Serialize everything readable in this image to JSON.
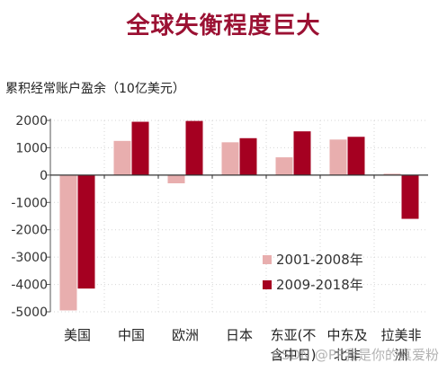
{
  "chart_data": {
    "type": "bar",
    "title": "全球失衡程度巨大",
    "ylabel": "累积经常账户盈余（10亿美元）",
    "xlabel": "",
    "categories": [
      "美国",
      "中国",
      "欧洲",
      "日本",
      "东亚(不含中日)",
      "中东及北非",
      "拉美非洲"
    ],
    "category_display": [
      [
        "美国"
      ],
      [
        "中国"
      ],
      [
        "欧洲"
      ],
      [
        "日本"
      ],
      [
        "东亚(不",
        "含中日)"
      ],
      [
        "中东及",
        "北非"
      ],
      [
        "拉美非",
        "洲"
      ]
    ],
    "series": [
      {
        "name": "2001-2008年",
        "color": "#e8aeae",
        "values": [
          -4950,
          1250,
          -300,
          1200,
          650,
          1300,
          50
        ]
      },
      {
        "name": "2009-2018年",
        "color": "#a50021",
        "values": [
          -4150,
          1950,
          1980,
          1350,
          1600,
          1400,
          -1600
        ]
      }
    ],
    "ylim": [
      -5000,
      2000
    ],
    "yticks": [
      2000,
      1000,
      0,
      -1000,
      -2000,
      -3000,
      -4000,
      -5000
    ],
    "yticks_text": [
      "2000",
      "1000",
      "0",
      "-1000",
      "-2000",
      "-3000",
      "-4000",
      "-5000"
    ],
    "grid": true,
    "legend_position": "bottom-right",
    "watermark": "CSDN @PP我是你的真爱粉"
  }
}
